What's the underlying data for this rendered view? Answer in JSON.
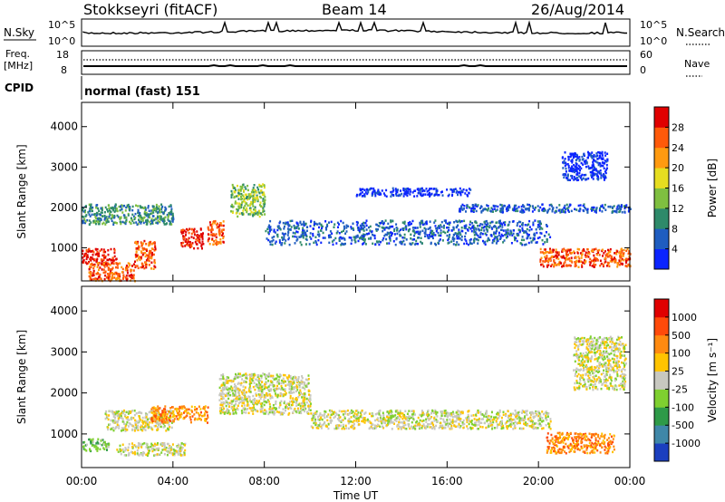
{
  "header": {
    "station": "Stokkseyri (fitACF)",
    "beam": "Beam 14",
    "date": "26/Aug/2014"
  },
  "panels": {
    "nsky": {
      "label": "N.Sky",
      "ticks_left": [
        "10^5",
        "10^0"
      ],
      "ticks_right": [
        "10^5",
        "10^0"
      ],
      "right_label": "N.Search"
    },
    "freq": {
      "label_line1": "Freq.",
      "label_line2": "[MHz]",
      "ticks_left": [
        "18",
        "8"
      ],
      "ticks_right": [
        "60",
        "0"
      ],
      "right_label": "Nave"
    },
    "cpid": {
      "label": "CPID",
      "text": "normal (fast) 151"
    }
  },
  "chart_data": [
    {
      "type": "heatmap",
      "name": "power",
      "ylabel": "Slant Range [km]",
      "xlabel": "",
      "x_ticks": [
        "00:00",
        "04:00",
        "08:00",
        "12:00",
        "16:00",
        "20:00",
        "00:00"
      ],
      "xlim_hours": [
        0,
        24
      ],
      "ylim": [
        180,
        4600
      ],
      "y_ticks": [
        1000,
        2000,
        3000,
        4000
      ],
      "colorbar": {
        "label": "Power [dB]",
        "ticks": [
          "4",
          "8",
          "12",
          "16",
          "20",
          "24",
          "28"
        ],
        "colors": [
          "#0b24ff",
          "#1f5dc0",
          "#2e8a6a",
          "#7fbf40",
          "#e6dd20",
          "#ff9a10",
          "#ff5a0a",
          "#e00000"
        ]
      },
      "regions": [
        {
          "hours": [
            0.0,
            1.5
          ],
          "range_km": [
            600,
            1000
          ],
          "level": 7
        },
        {
          "hours": [
            0.3,
            2.3
          ],
          "range_km": [
            200,
            650
          ],
          "level": 6
        },
        {
          "hours": [
            0.0,
            4.0
          ],
          "range_km": [
            1600,
            2100
          ],
          "level": 2
        },
        {
          "hours": [
            2.3,
            3.2
          ],
          "range_km": [
            500,
            1200
          ],
          "level": 6
        },
        {
          "hours": [
            4.3,
            5.3
          ],
          "range_km": [
            1000,
            1500
          ],
          "level": 7
        },
        {
          "hours": [
            5.5,
            6.2
          ],
          "range_km": [
            1100,
            1700
          ],
          "level": 6
        },
        {
          "hours": [
            6.5,
            8.0
          ],
          "range_km": [
            1800,
            2600
          ],
          "level": 3
        },
        {
          "hours": [
            8.0,
            20.5
          ],
          "range_km": [
            1100,
            1700
          ],
          "level": 1
        },
        {
          "hours": [
            12.0,
            17.0
          ],
          "range_km": [
            2300,
            2500
          ],
          "level": 0
        },
        {
          "hours": [
            16.5,
            24.0
          ],
          "range_km": [
            1900,
            2100
          ],
          "level": 1
        },
        {
          "hours": [
            20.0,
            24.0
          ],
          "range_km": [
            550,
            1000
          ],
          "level": 6
        },
        {
          "hours": [
            21.0,
            23.0
          ],
          "range_km": [
            2700,
            3400
          ],
          "level": 0
        }
      ]
    },
    {
      "type": "heatmap",
      "name": "velocity",
      "ylabel": "Slant Range [km]",
      "xlabel": "Time UT",
      "x_ticks": [
        "00:00",
        "04:00",
        "08:00",
        "12:00",
        "16:00",
        "20:00",
        "00:00"
      ],
      "xlim_hours": [
        0,
        24
      ],
      "ylim": [
        180,
        4600
      ],
      "y_ticks": [
        1000,
        2000,
        3000,
        4000
      ],
      "colorbar": {
        "label": "Velocity [m s⁻¹]",
        "ticks": [
          "1000",
          "500",
          "100",
          "25",
          "-25",
          "-100",
          "-500",
          "-1000"
        ],
        "colors": [
          "#1b3fbf",
          "#3f87a8",
          "#2e9a48",
          "#7fd030",
          "#c8c8c0",
          "#ffc400",
          "#ff8a10",
          "#ff4a0a",
          "#e00000"
        ]
      },
      "regions": [
        {
          "hours": [
            0.0,
            1.2
          ],
          "range_km": [
            600,
            900
          ],
          "level": 3
        },
        {
          "hours": [
            1.0,
            4.0
          ],
          "range_km": [
            1100,
            1600
          ],
          "level": 4
        },
        {
          "hours": [
            3.0,
            5.5
          ],
          "range_km": [
            1300,
            1700
          ],
          "level": 6
        },
        {
          "hours": [
            1.5,
            4.5
          ],
          "range_km": [
            500,
            800
          ],
          "level": 4
        },
        {
          "hours": [
            6.0,
            10.0
          ],
          "range_km": [
            1500,
            2500
          ],
          "level": 4
        },
        {
          "hours": [
            10.0,
            20.5
          ],
          "range_km": [
            1150,
            1600
          ],
          "level": 4
        },
        {
          "hours": [
            20.3,
            23.3
          ],
          "range_km": [
            550,
            1050
          ],
          "level": 6
        },
        {
          "hours": [
            21.5,
            23.8
          ],
          "range_km": [
            2100,
            3400
          ],
          "level": 4
        }
      ]
    }
  ]
}
